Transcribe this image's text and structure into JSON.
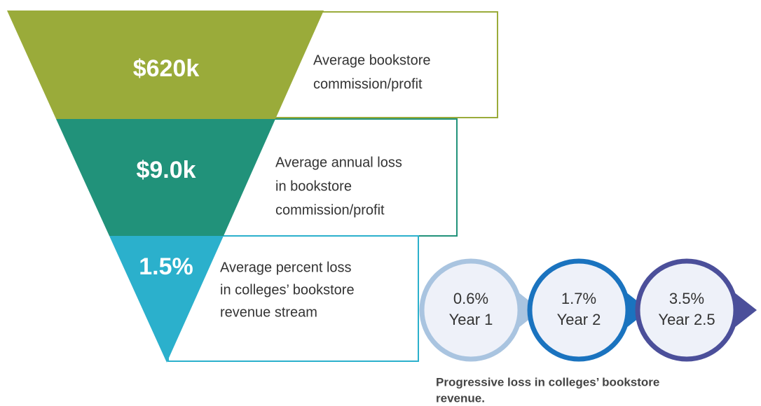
{
  "levels": [
    {
      "value": "$620k",
      "label": [
        "Average bookstore",
        "commission/profit"
      ]
    },
    {
      "value": "$9.0k",
      "label": [
        "Average annual loss",
        "in bookstore",
        "commission/profit"
      ]
    },
    {
      "value": "1.5%",
      "label": [
        "Average percent loss",
        "in colleges’ bookstore",
        "revenue stream"
      ]
    }
  ],
  "steps": [
    {
      "value": "0.6%",
      "label": "Year 1"
    },
    {
      "value": "1.7%",
      "label": "Year 2"
    },
    {
      "value": "3.5%",
      "label": "Year 2.5"
    }
  ],
  "caption": [
    "Progressive loss in colleges’ bookstore",
    "revenue."
  ]
}
